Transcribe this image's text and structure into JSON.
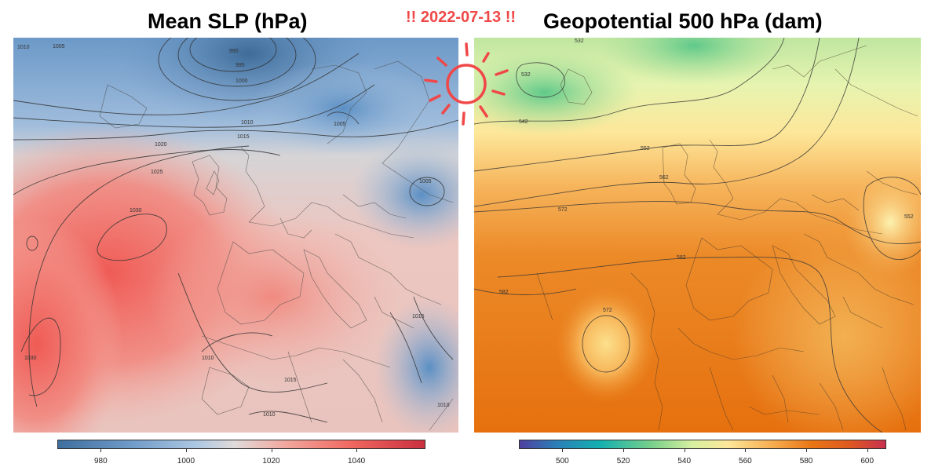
{
  "date_label": "!! 2022-07-13 !!",
  "left_panel": {
    "title": "Mean SLP (hPa)",
    "colorbar_ticks": [
      "980",
      "1000",
      "1020",
      "1040"
    ],
    "colorbar_tick_values": [
      980,
      1000,
      1020,
      1040
    ],
    "colorbar_range": [
      970,
      1056
    ],
    "contour_labels": [
      "1010",
      "1005",
      "990",
      "995",
      "1000",
      "1010",
      "1015",
      "1020",
      "1025",
      "1030",
      "1005",
      "1005",
      "1030",
      "1010",
      "1015",
      "1010",
      "1015",
      "1010"
    ]
  },
  "right_panel": {
    "title": "Geopotential 500 hPa (dam)",
    "colorbar_ticks": [
      "500",
      "520",
      "540",
      "560",
      "580",
      "600"
    ],
    "colorbar_tick_values": [
      500,
      520,
      540,
      560,
      580,
      600
    ],
    "colorbar_range": [
      486,
      606
    ],
    "contour_labels": [
      "532",
      "532",
      "542",
      "552",
      "562",
      "572",
      "582",
      "582",
      "572",
      "552"
    ]
  },
  "colors": {
    "date_accent": "#f04848",
    "sun_stroke": "#f04848",
    "slp_low": "#3e6f9e",
    "slp_high": "#c9303e",
    "z500_low": "#4e3fa0",
    "z500_mid": "#fde79a",
    "z500_high": "#c9304e"
  },
  "icons": {
    "sun": "sun-doodle-icon"
  }
}
